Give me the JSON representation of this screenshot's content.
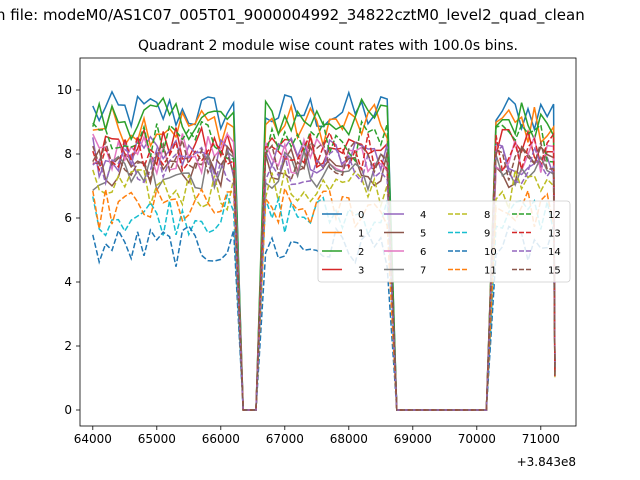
{
  "page": {
    "suptitle": "n file: modeM0/AS1C07_005T01_9000004992_34822cztM0_level2_quad_clean"
  },
  "chart_data": {
    "type": "line",
    "title": "Quadrant 2 module wise count rates with 100.0s bins.",
    "xlabel": "",
    "ylabel": "",
    "x_offset_label": "+3.843e8",
    "xlim": [
      63800,
      71550
    ],
    "ylim": [
      -0.5,
      11.0
    ],
    "xticks": [
      64000,
      65000,
      66000,
      67000,
      68000,
      69000,
      70000,
      71000
    ],
    "xtick_labels": [
      "64000",
      "65000",
      "66000",
      "67000",
      "68000",
      "69000",
      "70000",
      "71000"
    ],
    "yticks": [
      0,
      2,
      4,
      6,
      8,
      10
    ],
    "ytick_labels": [
      "0",
      "2",
      "4",
      "6",
      "8",
      "10"
    ],
    "grid": false,
    "legend": {
      "placement": "center-right",
      "ncol": 4
    },
    "segments": [
      {
        "x_start": 64000,
        "x_end": 66200
      },
      {
        "x_start": 66700,
        "x_end": 68600
      },
      {
        "x_start": 70300,
        "x_end": 71200
      }
    ],
    "series": [
      {
        "name": "0",
        "color": "#1f77b4",
        "dash": "solid",
        "level": 9.3
      },
      {
        "name": "1",
        "color": "#ff7f0e",
        "dash": "solid",
        "level": 8.9
      },
      {
        "name": "2",
        "color": "#2ca02c",
        "dash": "solid",
        "level": 9.1
      },
      {
        "name": "3",
        "color": "#d62728",
        "dash": "solid",
        "level": 8.2
      },
      {
        "name": "4",
        "color": "#9467bd",
        "dash": "solid",
        "level": 7.9
      },
      {
        "name": "5",
        "color": "#8c564b",
        "dash": "solid",
        "level": 7.6
      },
      {
        "name": "6",
        "color": "#e377c2",
        "dash": "solid",
        "level": 8.0
      },
      {
        "name": "7",
        "color": "#7f7f7f",
        "dash": "solid",
        "level": 7.5
      },
      {
        "name": "8",
        "color": "#bcbd22",
        "dash": "dashed",
        "level": 6.9
      },
      {
        "name": "9",
        "color": "#17becf",
        "dash": "dashed",
        "level": 6.1
      },
      {
        "name": "10",
        "color": "#1f77b4",
        "dash": "dashed",
        "level": 5.1
      },
      {
        "name": "11",
        "color": "#ff7f0e",
        "dash": "dashed",
        "level": 6.3
      },
      {
        "name": "12",
        "color": "#2ca02c",
        "dash": "dashed",
        "level": 8.4
      },
      {
        "name": "13",
        "color": "#d62728",
        "dash": "dashed",
        "level": 8.1
      },
      {
        "name": "14",
        "color": "#9467bd",
        "dash": "dashed",
        "level": 7.7
      },
      {
        "name": "15",
        "color": "#8c564b",
        "dash": "dashed",
        "level": 7.8
      }
    ]
  }
}
